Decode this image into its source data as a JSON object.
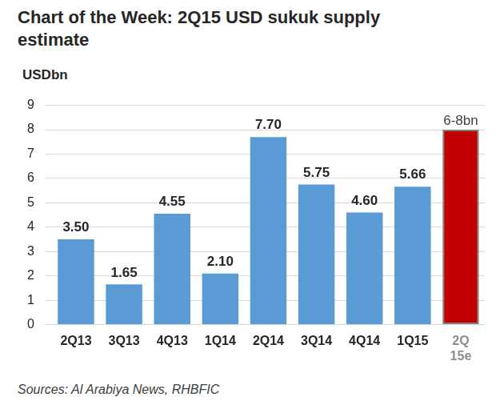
{
  "chart_data": {
    "type": "bar",
    "title": "Chart of the Week: 2Q15 USD sukuk supply estimate",
    "ylabel": "USDbn",
    "source": "Sources: Al Arabiya News, RHBFIC",
    "categories": [
      "2Q13",
      "3Q13",
      "4Q13",
      "1Q14",
      "2Q14",
      "3Q14",
      "4Q14",
      "1Q15",
      "2Q 15e"
    ],
    "values": [
      3.5,
      1.65,
      4.55,
      2.1,
      7.7,
      5.75,
      4.6,
      5.66,
      8
    ],
    "value_labels": [
      "3.50",
      "1.65",
      "4.55",
      "2.10",
      "7.70",
      "5.75",
      "4.60",
      "5.66",
      "6-8bn"
    ],
    "colors": [
      "#5b9bd5",
      "#5b9bd5",
      "#5b9bd5",
      "#5b9bd5",
      "#5b9bd5",
      "#5b9bd5",
      "#5b9bd5",
      "#5b9bd5",
      "#c00000"
    ],
    "ylim": [
      0,
      9
    ],
    "yticks": [
      0,
      1,
      2,
      3,
      4,
      5,
      6,
      7,
      8,
      9
    ],
    "grid": true,
    "data_labels": true
  }
}
